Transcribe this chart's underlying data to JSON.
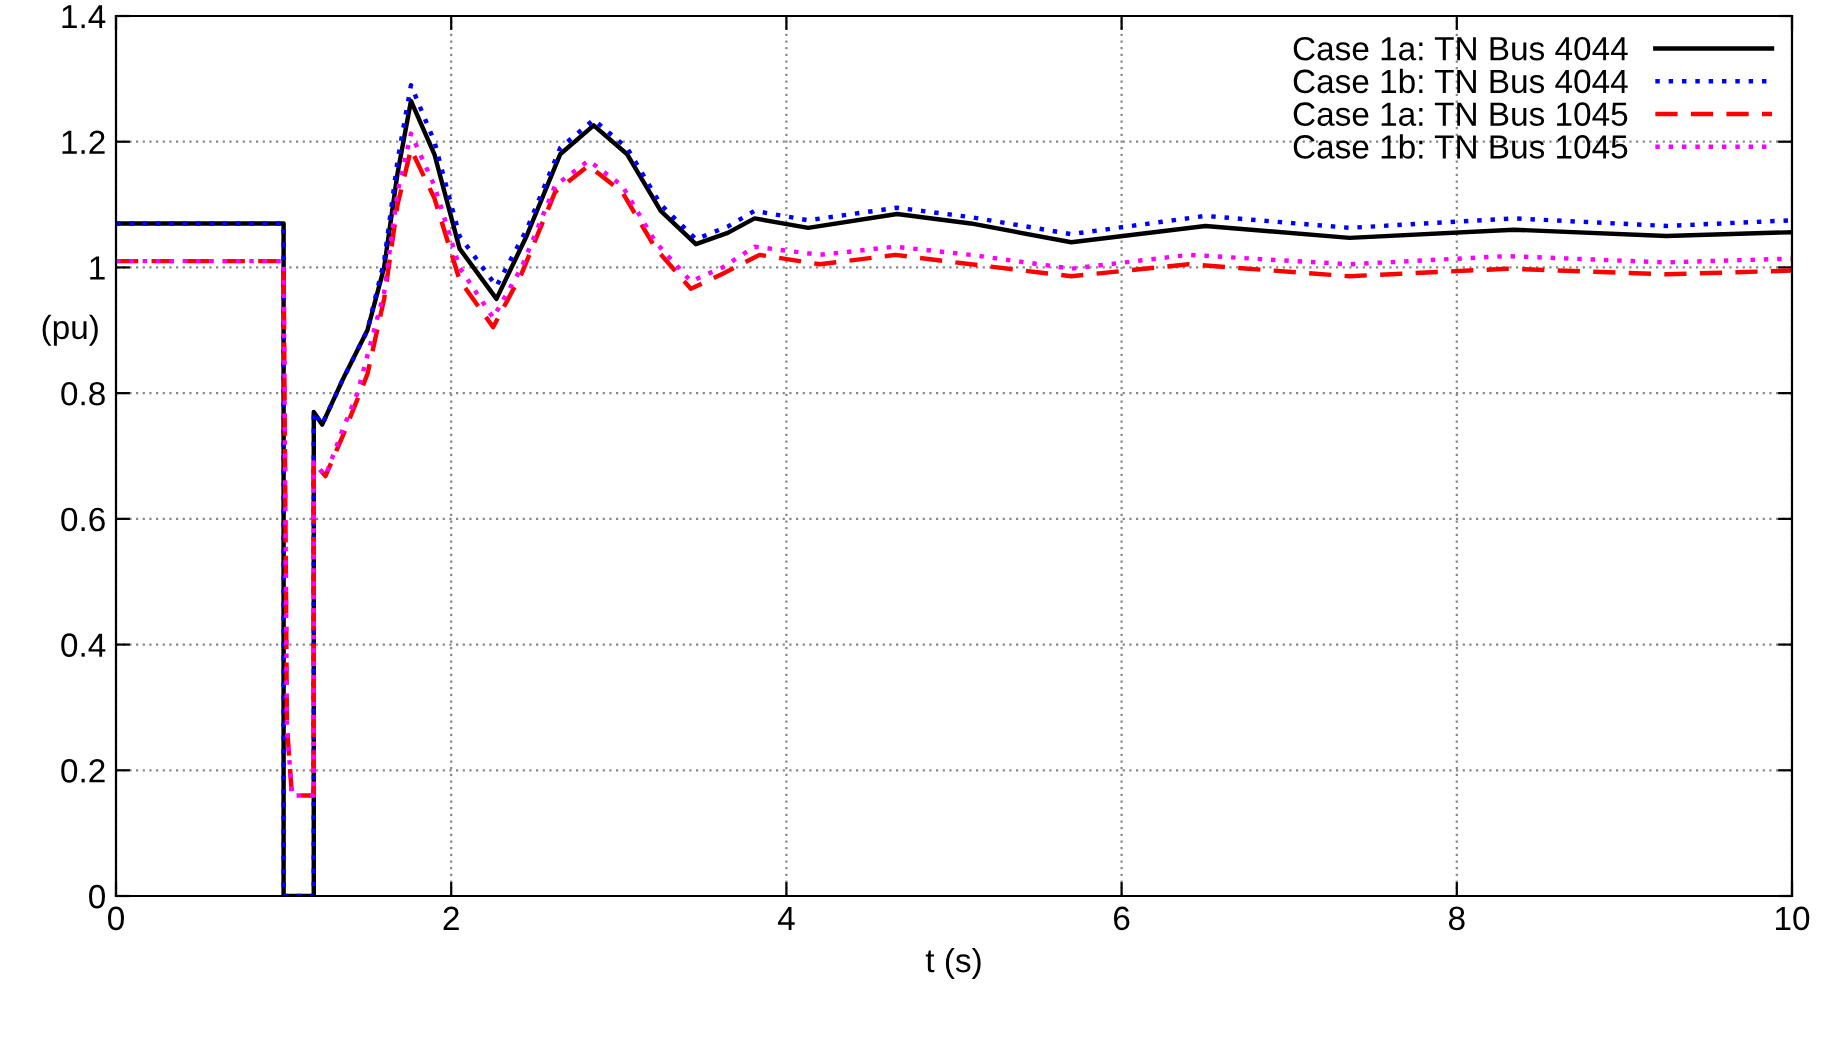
{
  "chart_data": {
    "type": "line",
    "xlabel": "t (s)",
    "ylabel": "(pu)",
    "xlim": [
      0,
      10
    ],
    "ylim": [
      0,
      1.4
    ],
    "xticks": [
      0,
      2,
      4,
      6,
      8,
      10
    ],
    "yticks": [
      0,
      0.2,
      0.4,
      0.6,
      0.8,
      1,
      1.2,
      1.4
    ],
    "grid": true,
    "legend": "top right",
    "series": [
      {
        "name": "Case 1a: TN Bus 4044",
        "color": "#000000",
        "line_style": "solid",
        "x": [
          0,
          1.0,
          1.0,
          1.18,
          1.18,
          1.23,
          1.35,
          1.5,
          1.6,
          1.68,
          1.76,
          1.9,
          2.05,
          2.27,
          2.45,
          2.65,
          2.85,
          3.05,
          3.25,
          3.46,
          3.65,
          3.81,
          4.13,
          4.66,
          5.1,
          5.7,
          6.5,
          7.36,
          8.34,
          9.25,
          10
        ],
        "values": [
          1.07,
          1.07,
          0,
          0,
          0.77,
          0.75,
          0.82,
          0.9,
          1.0,
          1.15,
          1.265,
          1.18,
          1.03,
          0.95,
          1.05,
          1.18,
          1.226,
          1.18,
          1.09,
          1.037,
          1.055,
          1.078,
          1.063,
          1.085,
          1.07,
          1.04,
          1.066,
          1.047,
          1.06,
          1.05,
          1.056
        ]
      },
      {
        "name": "Case 1b: TN Bus 4044",
        "color": "#0000ff",
        "line_style": "dotted",
        "x": [
          0,
          1.0,
          1.0,
          1.18,
          1.18,
          1.23,
          1.35,
          1.5,
          1.6,
          1.68,
          1.76,
          1.9,
          2.05,
          2.27,
          2.45,
          2.65,
          2.85,
          3.05,
          3.25,
          3.46,
          3.65,
          3.81,
          4.13,
          4.66,
          5.1,
          5.7,
          6.5,
          7.36,
          8.34,
          9.25,
          10
        ],
        "values": [
          1.07,
          1.07,
          0,
          0,
          0.77,
          0.75,
          0.82,
          0.9,
          1.01,
          1.17,
          1.29,
          1.2,
          1.05,
          0.97,
          1.06,
          1.19,
          1.235,
          1.19,
          1.1,
          1.045,
          1.065,
          1.09,
          1.075,
          1.095,
          1.08,
          1.053,
          1.082,
          1.063,
          1.078,
          1.066,
          1.075
        ]
      },
      {
        "name": "Case 1a: TN Bus 1045",
        "color": "#ff0000",
        "line_style": "dashed",
        "x": [
          0,
          1.0,
          1.02,
          1.05,
          1.18,
          1.18,
          1.25,
          1.35,
          1.5,
          1.6,
          1.68,
          1.76,
          1.9,
          2.05,
          2.25,
          2.42,
          2.62,
          2.82,
          3.02,
          3.22,
          3.43,
          3.62,
          3.84,
          4.2,
          4.65,
          5.1,
          5.7,
          6.4,
          7.36,
          8.3,
          9.25,
          10
        ],
        "values": [
          1.01,
          1.01,
          0.27,
          0.16,
          0.16,
          0.69,
          0.668,
          0.73,
          0.83,
          0.95,
          1.1,
          1.188,
          1.11,
          0.98,
          0.905,
          0.99,
          1.12,
          1.162,
          1.12,
          1.03,
          0.966,
          0.99,
          1.02,
          1.005,
          1.02,
          1.005,
          0.986,
          1.005,
          0.986,
          0.998,
          0.989,
          0.995
        ]
      },
      {
        "name": "Case 1b: TN Bus 1045",
        "color": "#ff00ff",
        "line_style": "dotted",
        "x": [
          0,
          1.0,
          1.02,
          1.05,
          1.18,
          1.18,
          1.25,
          1.35,
          1.44,
          1.6,
          1.68,
          1.76,
          1.9,
          2.05,
          2.25,
          2.42,
          2.62,
          2.82,
          3.02,
          3.22,
          3.43,
          3.62,
          3.81,
          4.2,
          4.65,
          5.1,
          5.7,
          6.4,
          7.36,
          8.3,
          9.25,
          10
        ],
        "values": [
          1.01,
          1.01,
          0.27,
          0.16,
          0.16,
          0.69,
          0.668,
          0.74,
          0.8,
          0.96,
          1.12,
          1.213,
          1.13,
          1.0,
          0.92,
          1.0,
          1.13,
          1.17,
          1.13,
          1.04,
          0.978,
          1.0,
          1.033,
          1.02,
          1.033,
          1.02,
          0.998,
          1.02,
          1.005,
          1.018,
          1.008,
          1.014
        ]
      }
    ]
  }
}
